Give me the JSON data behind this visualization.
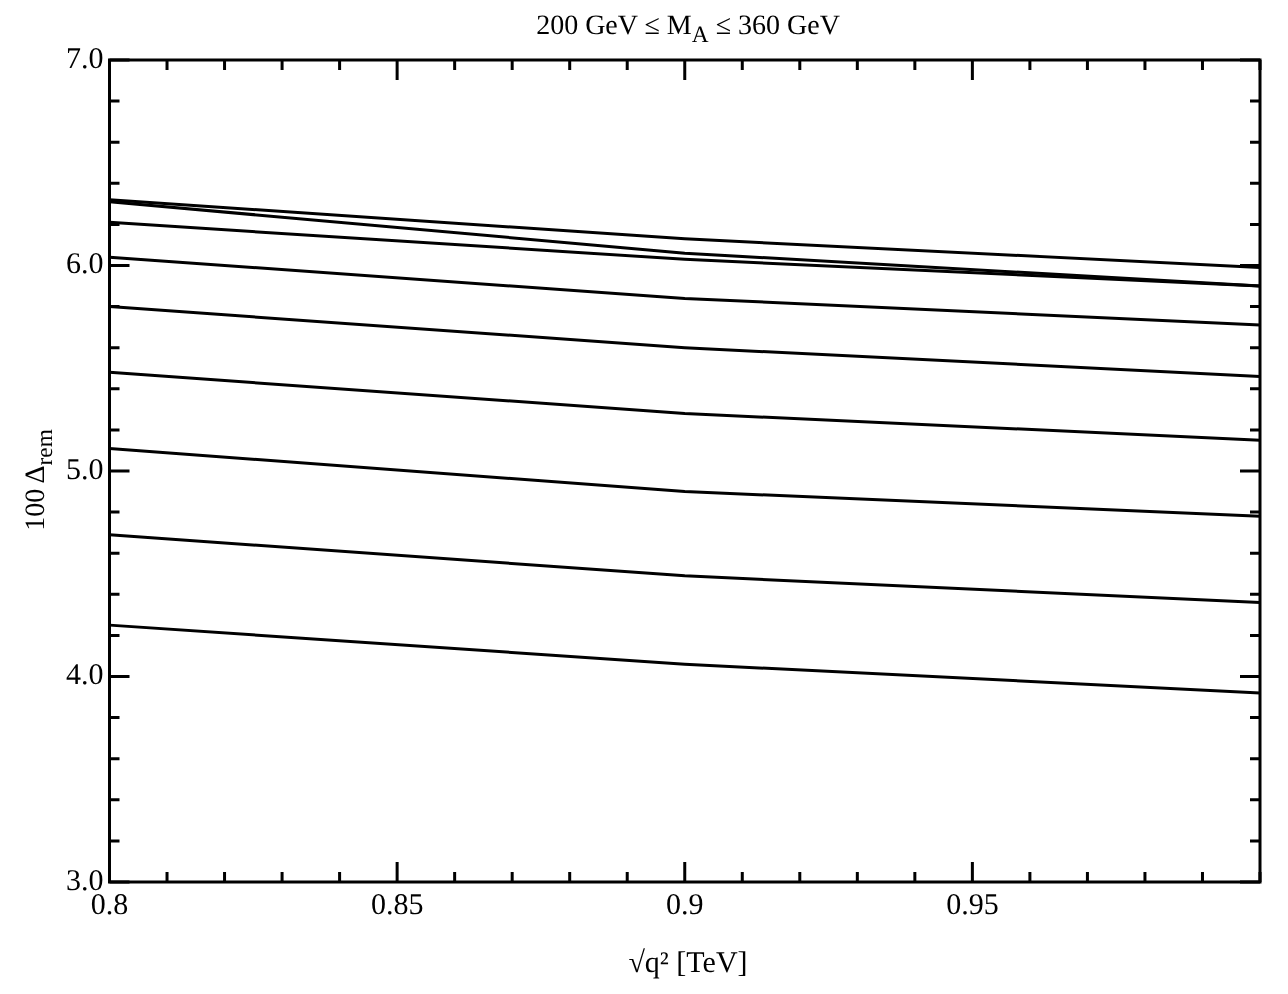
{
  "chart_data": {
    "type": "line",
    "title": "200 GeV ≤ M$_{A}$ ≤ 360 GeV",
    "xlabel": "√q² [TeV]",
    "ylabel": "100 Δ$_{rem}$",
    "x": [
      0.8,
      0.9,
      1.0
    ],
    "series": [
      {
        "color": "#000000",
        "values": [
          6.32,
          6.13,
          5.99
        ]
      },
      {
        "color": "#000000",
        "values": [
          6.31,
          6.06,
          5.9
        ]
      },
      {
        "color": "#000000",
        "values": [
          6.21,
          6.03,
          5.9
        ]
      },
      {
        "color": "#000000",
        "values": [
          6.04,
          5.84,
          5.71
        ]
      },
      {
        "color": "#000000",
        "values": [
          5.8,
          5.6,
          5.46
        ]
      },
      {
        "color": "#000000",
        "values": [
          5.48,
          5.28,
          5.15
        ]
      },
      {
        "color": "#000000",
        "values": [
          5.11,
          4.9,
          4.78
        ]
      },
      {
        "color": "#000000",
        "values": [
          4.69,
          4.49,
          4.36
        ]
      },
      {
        "color": "#000000",
        "values": [
          4.25,
          4.06,
          3.92
        ]
      }
    ],
    "xlim": [
      0.8,
      1.0
    ],
    "xticks": [
      0.8,
      {
        "value": 0.81,
        "label": null
      },
      {
        "value": 0.82,
        "label": null
      },
      {
        "value": 0.83,
        "label": null
      },
      {
        "value": 0.84,
        "label": null
      },
      0.85,
      {
        "value": 0.86,
        "label": null
      },
      {
        "value": 0.87,
        "label": null
      },
      {
        "value": 0.88,
        "label": null
      },
      {
        "value": 0.89,
        "label": null
      },
      0.9,
      {
        "value": 0.91,
        "label": null
      },
      {
        "value": 0.92,
        "label": null
      },
      {
        "value": 0.93,
        "label": null
      },
      {
        "value": 0.94,
        "label": null
      },
      0.95,
      {
        "value": 0.96,
        "label": null
      },
      {
        "value": 0.97,
        "label": null
      },
      {
        "value": 0.98,
        "label": null
      },
      {
        "value": 0.99,
        "label": null
      },
      {
        "value": 1.0,
        "label": null
      }
    ],
    "ylim": [
      3,
      7
    ],
    "yticks": [
      {
        "value": 3,
        "label": "3.0"
      },
      {
        "value": 3.2,
        "label": null
      },
      {
        "value": 3.4,
        "label": null
      },
      {
        "value": 3.6,
        "label": null
      },
      {
        "value": 3.8,
        "label": null
      },
      {
        "value": 4,
        "label": "4.0"
      },
      {
        "value": 4.2,
        "label": null
      },
      {
        "value": 4.4,
        "label": null
      },
      {
        "value": 4.6,
        "label": null
      },
      {
        "value": 4.8,
        "label": null
      },
      {
        "value": 5,
        "label": "5.0"
      },
      {
        "value": 5.2,
        "label": null
      },
      {
        "value": 5.4,
        "label": null
      },
      {
        "value": 5.6,
        "label": null
      },
      {
        "value": 5.8,
        "label": null
      },
      {
        "value": 6,
        "label": "6.0"
      },
      {
        "value": 6.2,
        "label": null
      },
      {
        "value": 6.4,
        "label": null
      },
      {
        "value": 6.6,
        "label": null
      },
      {
        "value": 6.8,
        "label": null
      },
      {
        "value": 7,
        "label": "7.0"
      }
    ],
    "grid": false,
    "legend": false,
    "marker": "none",
    "line_style": "solid"
  }
}
